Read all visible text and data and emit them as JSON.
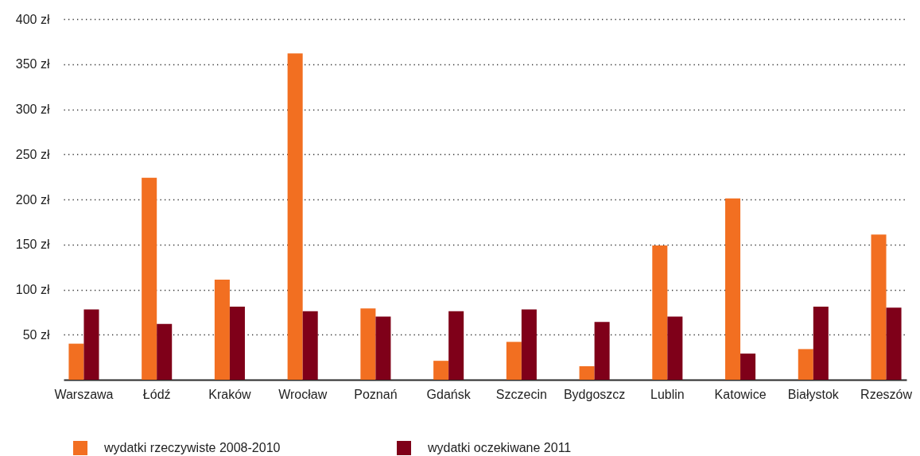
{
  "chart_data": {
    "type": "bar",
    "categories": [
      "Warszawa",
      "Łódź",
      "Kraków",
      "Wrocław",
      "Poznań",
      "Gdańsk",
      "Szczecin",
      "Bydgoszcz",
      "Lublin",
      "Katowice",
      "Białystok",
      "Rzeszów"
    ],
    "series": [
      {
        "name": "wydatki rzeczywiste 2008-2010",
        "color": "#f26f21",
        "values": [
          40,
          224,
          111,
          362,
          79,
          21,
          42,
          15,
          149,
          201,
          34,
          161
        ]
      },
      {
        "name": "wydatki oczekiwane 2011",
        "color": "#7f0019",
        "values": [
          78,
          62,
          81,
          76,
          70,
          76,
          78,
          64,
          70,
          29,
          81,
          80
        ]
      }
    ],
    "ylim": [
      0,
      400
    ],
    "yticks": [
      {
        "value": 50,
        "label": "50 zł"
      },
      {
        "value": 100,
        "label": "100 zł"
      },
      {
        "value": 150,
        "label": "150 zł"
      },
      {
        "value": 200,
        "label": "200 zł"
      },
      {
        "value": 250,
        "label": "250 zł"
      },
      {
        "value": 300,
        "label": "300 zł"
      },
      {
        "value": 350,
        "label": "350 zł"
      },
      {
        "value": 400,
        "label": "400 zł"
      }
    ],
    "grid": "y",
    "legend": "bottom left"
  }
}
